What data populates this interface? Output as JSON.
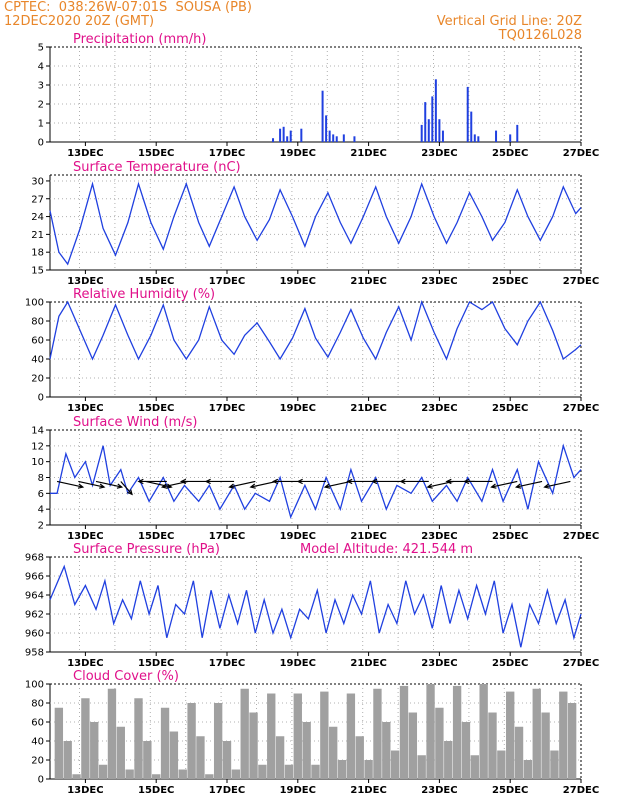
{
  "header": {
    "line1": "CPTEC:  038:26W-07:01S  SOUSA (PB)",
    "line2": "12DEC2020 20Z (GMT)",
    "right1": "Vertical Grid Line: 20Z",
    "right2": "TQ0126L028"
  },
  "colors": {
    "header": "#e8862a",
    "title": "#e0108a",
    "series": "#2040e0",
    "cloud": "#a0a0a0",
    "grid": "#b0b0b0"
  },
  "chart_data": [
    {
      "type": "bar",
      "title": "Precipitation (mm/h)",
      "x_labels": [
        "13DEC",
        "15DEC",
        "17DEC",
        "19DEC",
        "21DEC",
        "23DEC",
        "25DEC",
        "27DEC"
      ],
      "ylim": [
        0,
        5
      ],
      "yticks": [
        0,
        1,
        2,
        3,
        4,
        5
      ],
      "grid": true,
      "x": [
        18.3,
        18.5,
        18.6,
        18.7,
        18.8,
        19.1,
        19.7,
        19.8,
        19.9,
        20.0,
        20.1,
        20.3,
        20.6,
        22.5,
        22.6,
        22.7,
        22.8,
        22.9,
        23.0,
        23.1,
        23.8,
        23.9,
        24.0,
        24.1,
        24.6,
        25.0,
        25.2
      ],
      "values": [
        0.2,
        0.7,
        0.8,
        0.3,
        0.6,
        0.7,
        2.7,
        1.4,
        0.6,
        0.4,
        0.3,
        0.4,
        0.3,
        0.9,
        2.1,
        1.2,
        2.4,
        3.3,
        1.2,
        0.6,
        2.9,
        1.6,
        0.4,
        0.3,
        0.6,
        0.4,
        0.9
      ]
    },
    {
      "type": "line",
      "title": "Surface Temperature (nC)",
      "x_labels": [
        "13DEC",
        "15DEC",
        "17DEC",
        "19DEC",
        "21DEC",
        "23DEC",
        "25DEC",
        "27DEC"
      ],
      "ylim": [
        15,
        31
      ],
      "yticks": [
        15,
        18,
        21,
        24,
        27,
        30
      ],
      "grid": true,
      "x": [
        12.0,
        12.25,
        12.5,
        12.85,
        13.2,
        13.5,
        13.85,
        14.2,
        14.5,
        14.85,
        15.2,
        15.5,
        15.85,
        16.2,
        16.5,
        16.85,
        17.2,
        17.5,
        17.85,
        18.2,
        18.5,
        18.85,
        19.2,
        19.5,
        19.85,
        20.2,
        20.5,
        20.85,
        21.2,
        21.5,
        21.85,
        22.2,
        22.5,
        22.85,
        23.2,
        23.5,
        23.85,
        24.2,
        24.5,
        24.85,
        25.2,
        25.5,
        25.85,
        26.2,
        26.5,
        26.85,
        27.0
      ],
      "values": [
        25,
        18,
        16,
        22,
        29.5,
        22,
        17.5,
        23,
        29.5,
        23,
        18.5,
        24,
        29.5,
        23,
        19,
        24,
        29,
        24,
        20,
        23.5,
        28.5,
        24,
        19,
        24,
        28,
        23,
        19.5,
        24,
        29,
        24,
        19.5,
        24,
        29.5,
        24,
        19.5,
        23,
        28,
        24,
        20,
        23,
        28.5,
        24,
        20,
        24,
        29,
        24.5,
        25.5
      ]
    },
    {
      "type": "line",
      "title": "Relative Humidity (%)",
      "x_labels": [
        "13DEC",
        "15DEC",
        "17DEC",
        "19DEC",
        "21DEC",
        "23DEC",
        "25DEC",
        "27DEC"
      ],
      "ylim": [
        0,
        100
      ],
      "yticks": [
        0,
        20,
        40,
        60,
        80,
        100
      ],
      "grid": true,
      "x": [
        12.0,
        12.25,
        12.5,
        12.85,
        13.2,
        13.5,
        13.85,
        14.2,
        14.5,
        14.85,
        15.2,
        15.5,
        15.85,
        16.2,
        16.5,
        16.85,
        17.2,
        17.5,
        17.85,
        18.2,
        18.5,
        18.85,
        19.2,
        19.5,
        19.85,
        20.2,
        20.5,
        20.85,
        21.2,
        21.5,
        21.85,
        22.2,
        22.5,
        22.85,
        23.2,
        23.5,
        23.85,
        24.2,
        24.5,
        24.85,
        25.2,
        25.5,
        25.85,
        26.2,
        26.5,
        26.85,
        27.0
      ],
      "values": [
        40,
        85,
        100,
        70,
        40,
        65,
        97,
        65,
        40,
        65,
        97,
        60,
        40,
        60,
        95,
        60,
        45,
        65,
        78,
        58,
        40,
        62,
        93,
        62,
        42,
        68,
        92,
        62,
        40,
        68,
        95,
        60,
        100,
        68,
        40,
        72,
        100,
        92,
        100,
        72,
        55,
        80,
        100,
        70,
        40,
        50,
        55
      ]
    },
    {
      "type": "line",
      "title": "Surface Wind (m/s)",
      "x_labels": [
        "13DEC",
        "15DEC",
        "17DEC",
        "19DEC",
        "21DEC",
        "23DEC",
        "25DEC",
        "27DEC"
      ],
      "ylim": [
        2,
        14
      ],
      "yticks": [
        2,
        4,
        6,
        8,
        10,
        12,
        14
      ],
      "grid": true,
      "x": [
        12.0,
        12.2,
        12.45,
        12.7,
        13.0,
        13.2,
        13.5,
        13.7,
        14.0,
        14.2,
        14.5,
        14.8,
        15.2,
        15.5,
        15.8,
        16.2,
        16.5,
        16.8,
        17.2,
        17.5,
        17.8,
        18.2,
        18.5,
        18.8,
        19.2,
        19.5,
        19.8,
        20.2,
        20.5,
        20.8,
        21.2,
        21.5,
        21.8,
        22.2,
        22.5,
        22.8,
        23.2,
        23.5,
        23.8,
        24.2,
        24.5,
        24.8,
        25.2,
        25.5,
        25.8,
        26.2,
        26.5,
        26.8,
        27.0
      ],
      "values": [
        6,
        6,
        11,
        8,
        10,
        7,
        12,
        7,
        9,
        6,
        8,
        5,
        8,
        5,
        7,
        5,
        7,
        4,
        7,
        4,
        6,
        5,
        8,
        3,
        7,
        4,
        8,
        4,
        9,
        5,
        8,
        4,
        7,
        6,
        8,
        5,
        7,
        5,
        8,
        5,
        9,
        5,
        9,
        4,
        10,
        6,
        12,
        8,
        9
      ],
      "arrows": {
        "x": [
          12.2,
          12.8,
          13.3,
          14.0,
          14.7,
          15.3,
          15.9,
          16.5,
          17.2,
          17.8,
          18.4,
          19.1,
          19.8,
          20.5,
          21.2,
          21.9,
          22.7,
          23.4,
          24.0,
          24.5,
          25.2,
          25.9,
          26.7
        ],
        "dir": [
          "se",
          "se",
          "se",
          "s",
          "se",
          "w",
          "sw",
          "w",
          "w",
          "sw",
          "sw",
          "w",
          "w",
          "sw",
          "w",
          "w",
          "w",
          "sw",
          "w",
          "w",
          "sw",
          "sw",
          "sw"
        ]
      }
    },
    {
      "type": "line",
      "title": "Surface Pressure (hPa)",
      "annotation": "Model Altitude: 421.544  m",
      "x_labels": [
        "13DEC",
        "15DEC",
        "17DEC",
        "19DEC",
        "21DEC",
        "23DEC",
        "25DEC",
        "27DEC"
      ],
      "ylim": [
        958,
        968
      ],
      "yticks": [
        958,
        960,
        962,
        964,
        966,
        968
      ],
      "grid": true,
      "x": [
        12.0,
        12.4,
        12.7,
        13.0,
        13.3,
        13.55,
        13.8,
        14.05,
        14.3,
        14.55,
        14.8,
        15.05,
        15.3,
        15.55,
        15.8,
        16.05,
        16.3,
        16.55,
        16.8,
        17.05,
        17.3,
        17.55,
        17.8,
        18.05,
        18.3,
        18.55,
        18.8,
        19.05,
        19.3,
        19.55,
        19.8,
        20.05,
        20.3,
        20.55,
        20.8,
        21.05,
        21.3,
        21.55,
        21.8,
        22.05,
        22.3,
        22.55,
        22.8,
        23.05,
        23.3,
        23.55,
        23.8,
        24.05,
        24.3,
        24.55,
        24.8,
        25.05,
        25.3,
        25.55,
        25.8,
        26.05,
        26.3,
        26.55,
        26.8,
        27.0
      ],
      "values": [
        963.5,
        967,
        963,
        965,
        962.5,
        965.5,
        961,
        963.5,
        961.5,
        965.5,
        962,
        965,
        959.5,
        963,
        962,
        965.5,
        959.5,
        964.5,
        960.5,
        964,
        961,
        964.5,
        960,
        963.5,
        960,
        962.5,
        959.5,
        962.5,
        961.5,
        964.5,
        960,
        963.5,
        961,
        964,
        962,
        965.5,
        960,
        963,
        961,
        965.5,
        962,
        964,
        960.5,
        965,
        961,
        964.5,
        961.5,
        965,
        962,
        965.5,
        960,
        963,
        958.5,
        963,
        961,
        964.5,
        961,
        963.5,
        959.5,
        962
      ]
    },
    {
      "type": "bar",
      "title": "Cloud Cover (%)",
      "x_labels": [
        "13DEC",
        "15DEC",
        "17DEC",
        "19DEC",
        "21DEC",
        "23DEC",
        "25DEC",
        "27DEC"
      ],
      "ylim": [
        0,
        100
      ],
      "yticks": [
        0,
        20,
        40,
        60,
        80,
        100
      ],
      "grid": true,
      "x": [
        12.25,
        12.5,
        12.75,
        13.0,
        13.25,
        13.5,
        13.75,
        14.0,
        14.25,
        14.5,
        14.75,
        15.0,
        15.25,
        15.5,
        15.75,
        16.0,
        16.25,
        16.5,
        16.75,
        17.0,
        17.25,
        17.5,
        17.75,
        18.0,
        18.25,
        18.5,
        18.75,
        19.0,
        19.25,
        19.5,
        19.75,
        20.0,
        20.25,
        20.5,
        20.75,
        21.0,
        21.25,
        21.5,
        21.75,
        22.0,
        22.25,
        22.5,
        22.75,
        23.0,
        23.25,
        23.5,
        23.75,
        24.0,
        24.25,
        24.5,
        24.75,
        25.0,
        25.25,
        25.5,
        25.75,
        26.0,
        26.25,
        26.5,
        26.75
      ],
      "values": [
        75,
        40,
        5,
        85,
        60,
        15,
        95,
        55,
        10,
        85,
        40,
        5,
        75,
        50,
        10,
        80,
        45,
        5,
        80,
        40,
        10,
        95,
        70,
        15,
        90,
        45,
        15,
        90,
        60,
        15,
        92,
        55,
        20,
        90,
        45,
        20,
        95,
        60,
        30,
        98,
        70,
        25,
        100,
        75,
        40,
        98,
        60,
        25,
        100,
        70,
        30,
        92,
        55,
        20,
        95,
        70,
        30,
        92,
        80
      ]
    }
  ]
}
